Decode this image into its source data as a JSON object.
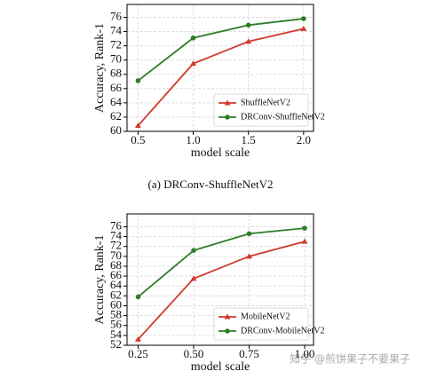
{
  "chart_data": [
    {
      "type": "line",
      "caption": "(a)  DRConv-ShuffleNetV2",
      "xlabel": "model scale",
      "ylabel": "Accuracy, Rank-1",
      "x": [
        0.5,
        1.0,
        1.5,
        2.0
      ],
      "series": [
        {
          "name": "ShuffleNetV2",
          "color": "#d03a2c",
          "marker": "triangle",
          "values": [
            60.8,
            69.5,
            72.6,
            74.4
          ]
        },
        {
          "name": "DRConv-ShuffleNetV2",
          "color": "#2e7d2a",
          "marker": "circle",
          "values": [
            67.1,
            73.1,
            74.9,
            75.8
          ]
        }
      ],
      "xlim": [
        0.4,
        2.09
      ],
      "ylim": [
        60,
        77.8
      ],
      "xticks": [
        0.5,
        {
          "value": 1.0,
          "label": "1.0"
        },
        1.5,
        {
          "value": 2.0,
          "label": "2.0"
        }
      ],
      "yticks": [
        60,
        62,
        64,
        66,
        68,
        70,
        72,
        74,
        76
      ],
      "grid": true,
      "legend": "lower right"
    },
    {
      "type": "line",
      "xlabel": "model scale",
      "ylabel": "Accuracy, Rank-1",
      "x": [
        0.25,
        0.5,
        0.75,
        1.0
      ],
      "series": [
        {
          "name": "MobileNetV2",
          "color": "#d03a2c",
          "marker": "triangle",
          "values": [
            53.2,
            65.5,
            70.0,
            73.0
          ]
        },
        {
          "name": "DRConv-MobileNetV2",
          "color": "#2e7d2a",
          "marker": "circle",
          "values": [
            61.8,
            71.2,
            74.6,
            75.7
          ]
        }
      ],
      "xlim": [
        0.2,
        1.04
      ],
      "ylim": [
        52,
        78.6
      ],
      "xticks": [
        0.25,
        {
          "value": 0.5,
          "label": "0.50"
        },
        {
          "value": 0.75,
          "label": "0.75"
        },
        {
          "value": 1.0,
          "label": "1.00"
        }
      ],
      "yticks": [
        52,
        54,
        56,
        58,
        60,
        62,
        64,
        66,
        68,
        70,
        72,
        74,
        76
      ],
      "grid": true,
      "legend": "lower right"
    }
  ],
  "watermark": "知乎 @煎饼果子不要果子"
}
